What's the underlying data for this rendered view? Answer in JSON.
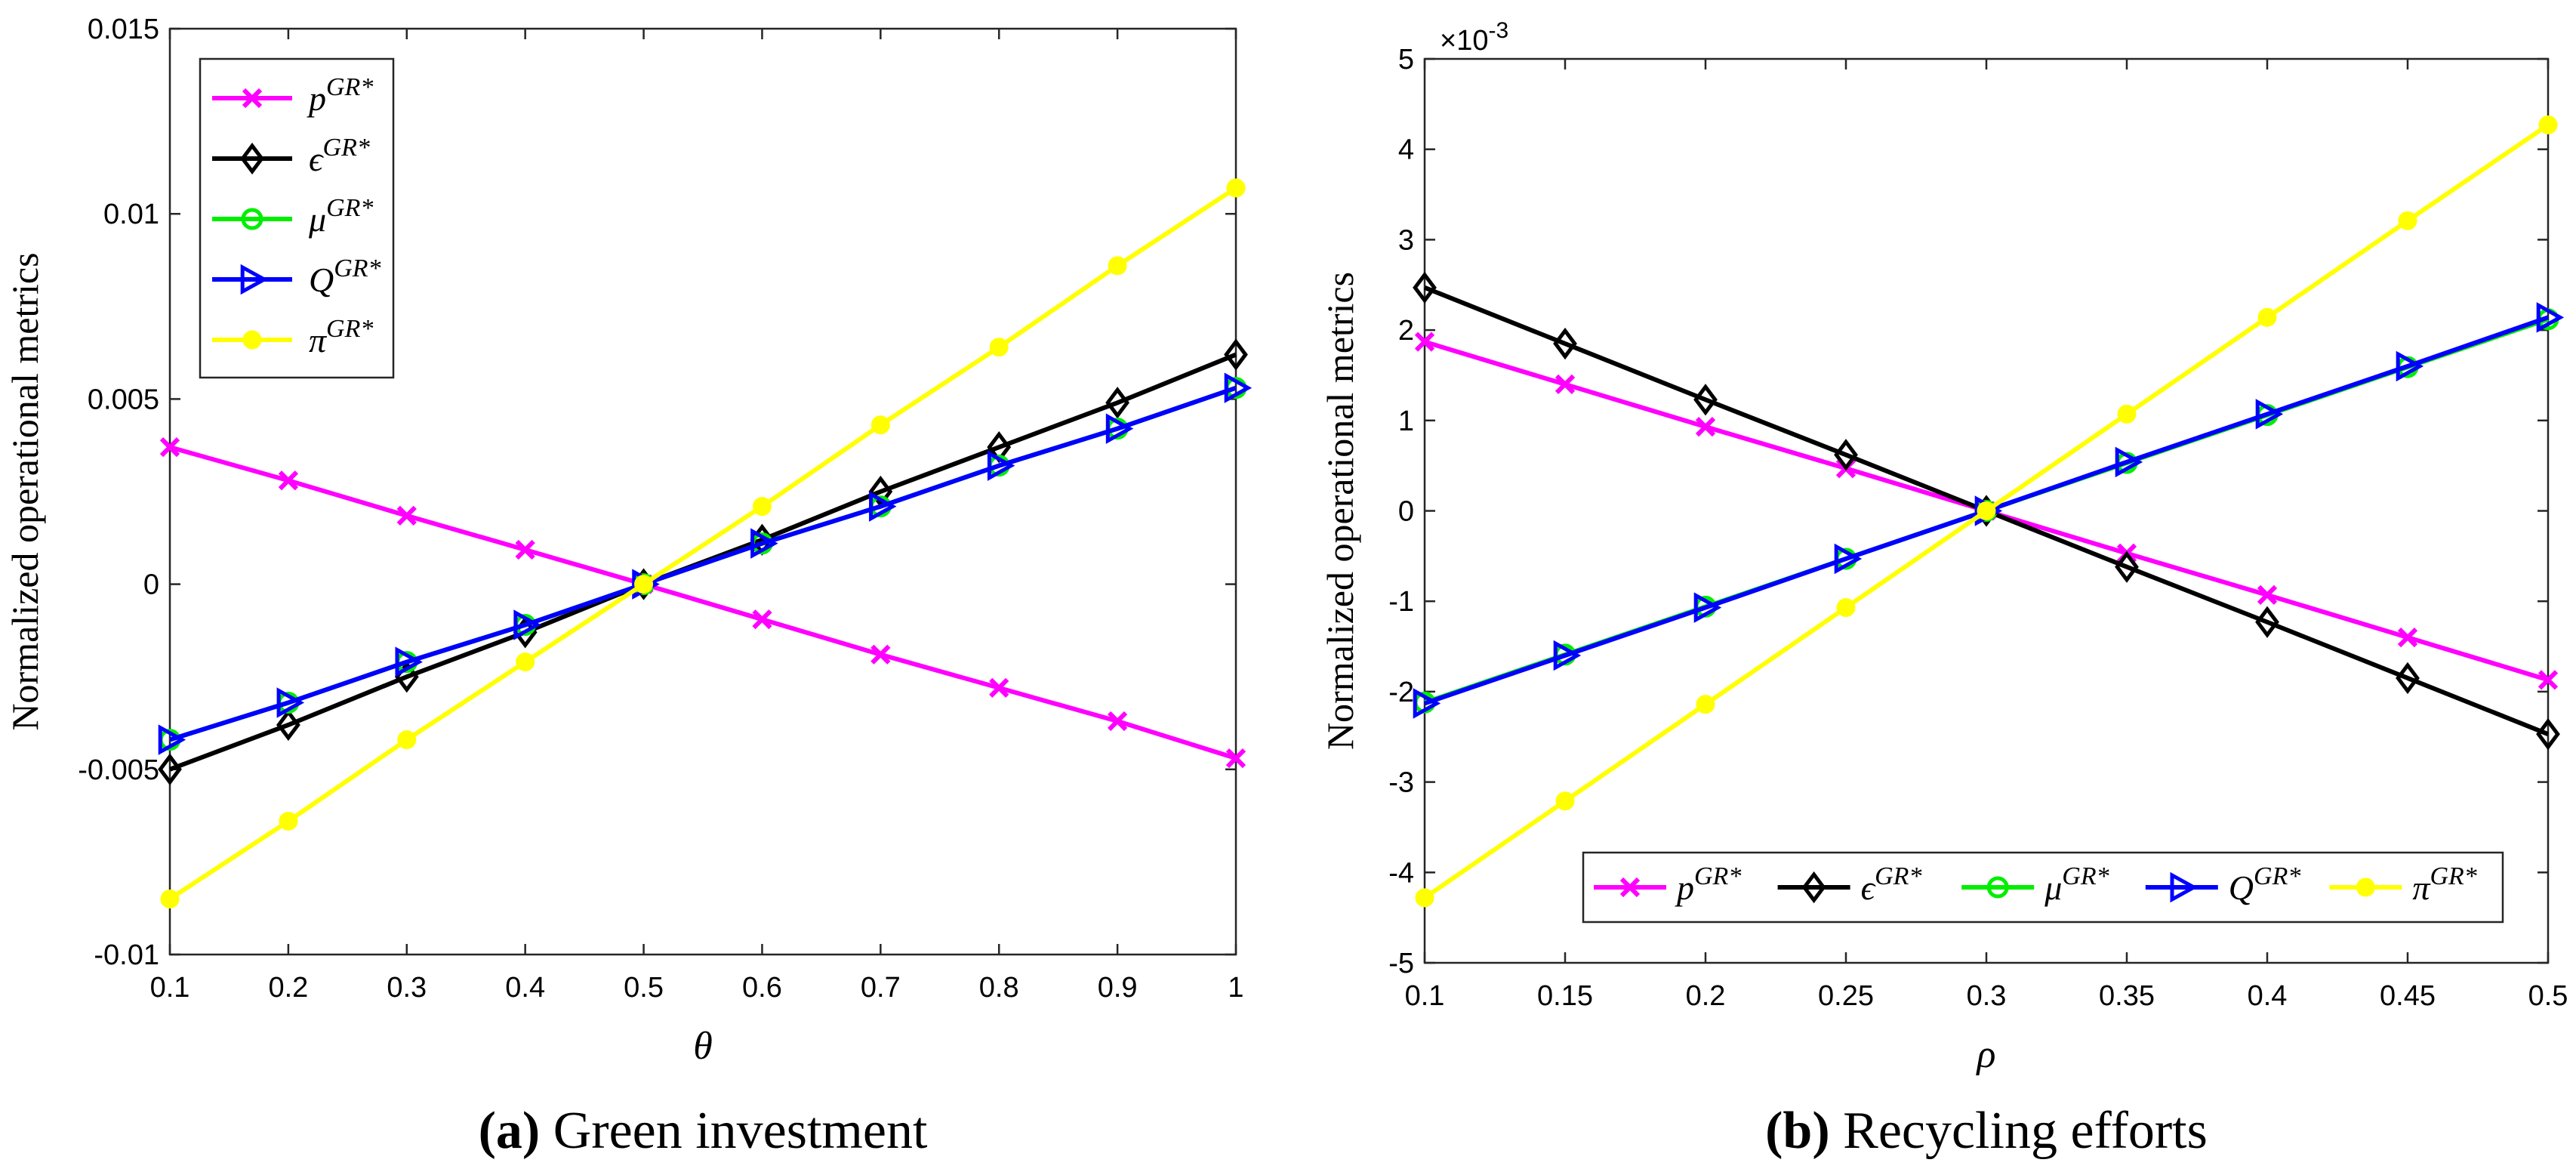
{
  "figure": {
    "chart_data": [
      {
        "type": "line",
        "panel": "a",
        "caption_letter": "(a)",
        "caption_text": " Green investment",
        "xlabel": "θ",
        "ylabel": "Normalized operational metrics",
        "xlim": [
          0.1,
          1.0
        ],
        "ylim": [
          -0.01,
          0.015
        ],
        "xticks": [
          0.1,
          0.2,
          0.3,
          0.4,
          0.5,
          0.6,
          0.7,
          0.8,
          0.9,
          1.0
        ],
        "xtick_labels": [
          "0.1",
          "0.2",
          "0.3",
          "0.4",
          "0.5",
          "0.6",
          "0.7",
          "0.8",
          "0.9",
          "1"
        ],
        "yticks": [
          -0.01,
          -0.005,
          0,
          0.005,
          0.01,
          0.015
        ],
        "ytick_labels": [
          "-0.01",
          "-0.005",
          "0",
          "0.005",
          "0.01",
          "0.015"
        ],
        "exponent_label": "",
        "legend_placement": "top-left",
        "legend_orientation": "vertical",
        "x": [
          0.1,
          0.2,
          0.3,
          0.4,
          0.5,
          0.6,
          0.7,
          0.8,
          0.9,
          1.0
        ],
        "series": [
          {
            "name": "p",
            "sup": "GR*",
            "color": "#ff00ff",
            "marker": "x",
            "values": [
              0.0037,
              0.0028,
              0.00185,
              0.00093,
              0,
              -0.00095,
              -0.0019,
              -0.0028,
              -0.0037,
              -0.0047
            ]
          },
          {
            "name": "ϵ",
            "sup": "GR*",
            "color": "#000000",
            "marker": "diamond",
            "values": [
              -0.005,
              -0.0038,
              -0.0025,
              -0.0013,
              0,
              0.0012,
              0.0025,
              0.0037,
              0.0049,
              0.0062
            ]
          },
          {
            "name": "μ",
            "sup": "GR*",
            "color": "#00ee00",
            "marker": "circle",
            "values": [
              -0.0042,
              -0.0032,
              -0.0021,
              -0.0011,
              0,
              0.0011,
              0.0021,
              0.0032,
              0.0042,
              0.0053
            ]
          },
          {
            "name": "Q",
            "sup": "GR*",
            "color": "#0000ff",
            "marker": "triangle-right",
            "values": [
              -0.0042,
              -0.0032,
              -0.0021,
              -0.0011,
              0,
              0.0011,
              0.0021,
              0.0032,
              0.0042,
              0.0053
            ]
          },
          {
            "name": "π",
            "sup": "GR*",
            "color": "#ffff00",
            "marker": "dot",
            "values": [
              -0.0085,
              -0.0064,
              -0.0042,
              -0.0021,
              0,
              0.0021,
              0.0043,
              0.0064,
              0.0086,
              0.0107
            ]
          }
        ]
      },
      {
        "type": "line",
        "panel": "b",
        "caption_letter": "(b)",
        "caption_text": " Recycling efforts",
        "xlabel": "ρ",
        "ylabel": "Normalized operational metrics",
        "xlim": [
          0.1,
          0.5
        ],
        "ylim": [
          -5,
          5
        ],
        "xticks": [
          0.1,
          0.15,
          0.2,
          0.25,
          0.3,
          0.35,
          0.4,
          0.45,
          0.5
        ],
        "xtick_labels": [
          "0.1",
          "0.15",
          "0.2",
          "0.25",
          "0.3",
          "0.35",
          "0.4",
          "0.45",
          "0.5"
        ],
        "yticks": [
          -5,
          -4,
          -3,
          -2,
          -1,
          0,
          1,
          2,
          3,
          4,
          5
        ],
        "ytick_labels": [
          "-5",
          "-4",
          "-3",
          "-2",
          "-1",
          "0",
          "1",
          "2",
          "3",
          "4",
          "5"
        ],
        "exponent_label": "×10",
        "exponent_power": "-3",
        "legend_placement": "bottom-right",
        "legend_orientation": "horizontal",
        "x": [
          0.1,
          0.15,
          0.2,
          0.25,
          0.3,
          0.35,
          0.4,
          0.45,
          0.5
        ],
        "series": [
          {
            "name": "p",
            "sup": "GR*",
            "color": "#ff00ff",
            "marker": "x",
            "values": [
              1.87,
              1.4,
              0.93,
              0.47,
              0,
              -0.47,
              -0.93,
              -1.4,
              -1.87
            ]
          },
          {
            "name": "ϵ",
            "sup": "GR*",
            "color": "#000000",
            "marker": "diamond",
            "values": [
              2.47,
              1.85,
              1.23,
              0.62,
              0,
              -0.62,
              -1.23,
              -1.85,
              -2.47
            ]
          },
          {
            "name": "μ",
            "sup": "GR*",
            "color": "#00ee00",
            "marker": "circle",
            "values": [
              -2.12,
              -1.59,
              -1.06,
              -0.53,
              0,
              0.53,
              1.06,
              1.59,
              2.12
            ]
          },
          {
            "name": "Q",
            "sup": "GR*",
            "color": "#0000ff",
            "marker": "triangle-right",
            "values": [
              -2.13,
              -1.6,
              -1.07,
              -0.53,
              0,
              0.54,
              1.07,
              1.6,
              2.14
            ]
          },
          {
            "name": "π",
            "sup": "GR*",
            "color": "#ffff00",
            "marker": "dot",
            "values": [
              -4.28,
              -3.21,
              -2.14,
              -1.07,
              0,
              1.07,
              2.14,
              3.21,
              4.27
            ]
          }
        ]
      }
    ]
  }
}
